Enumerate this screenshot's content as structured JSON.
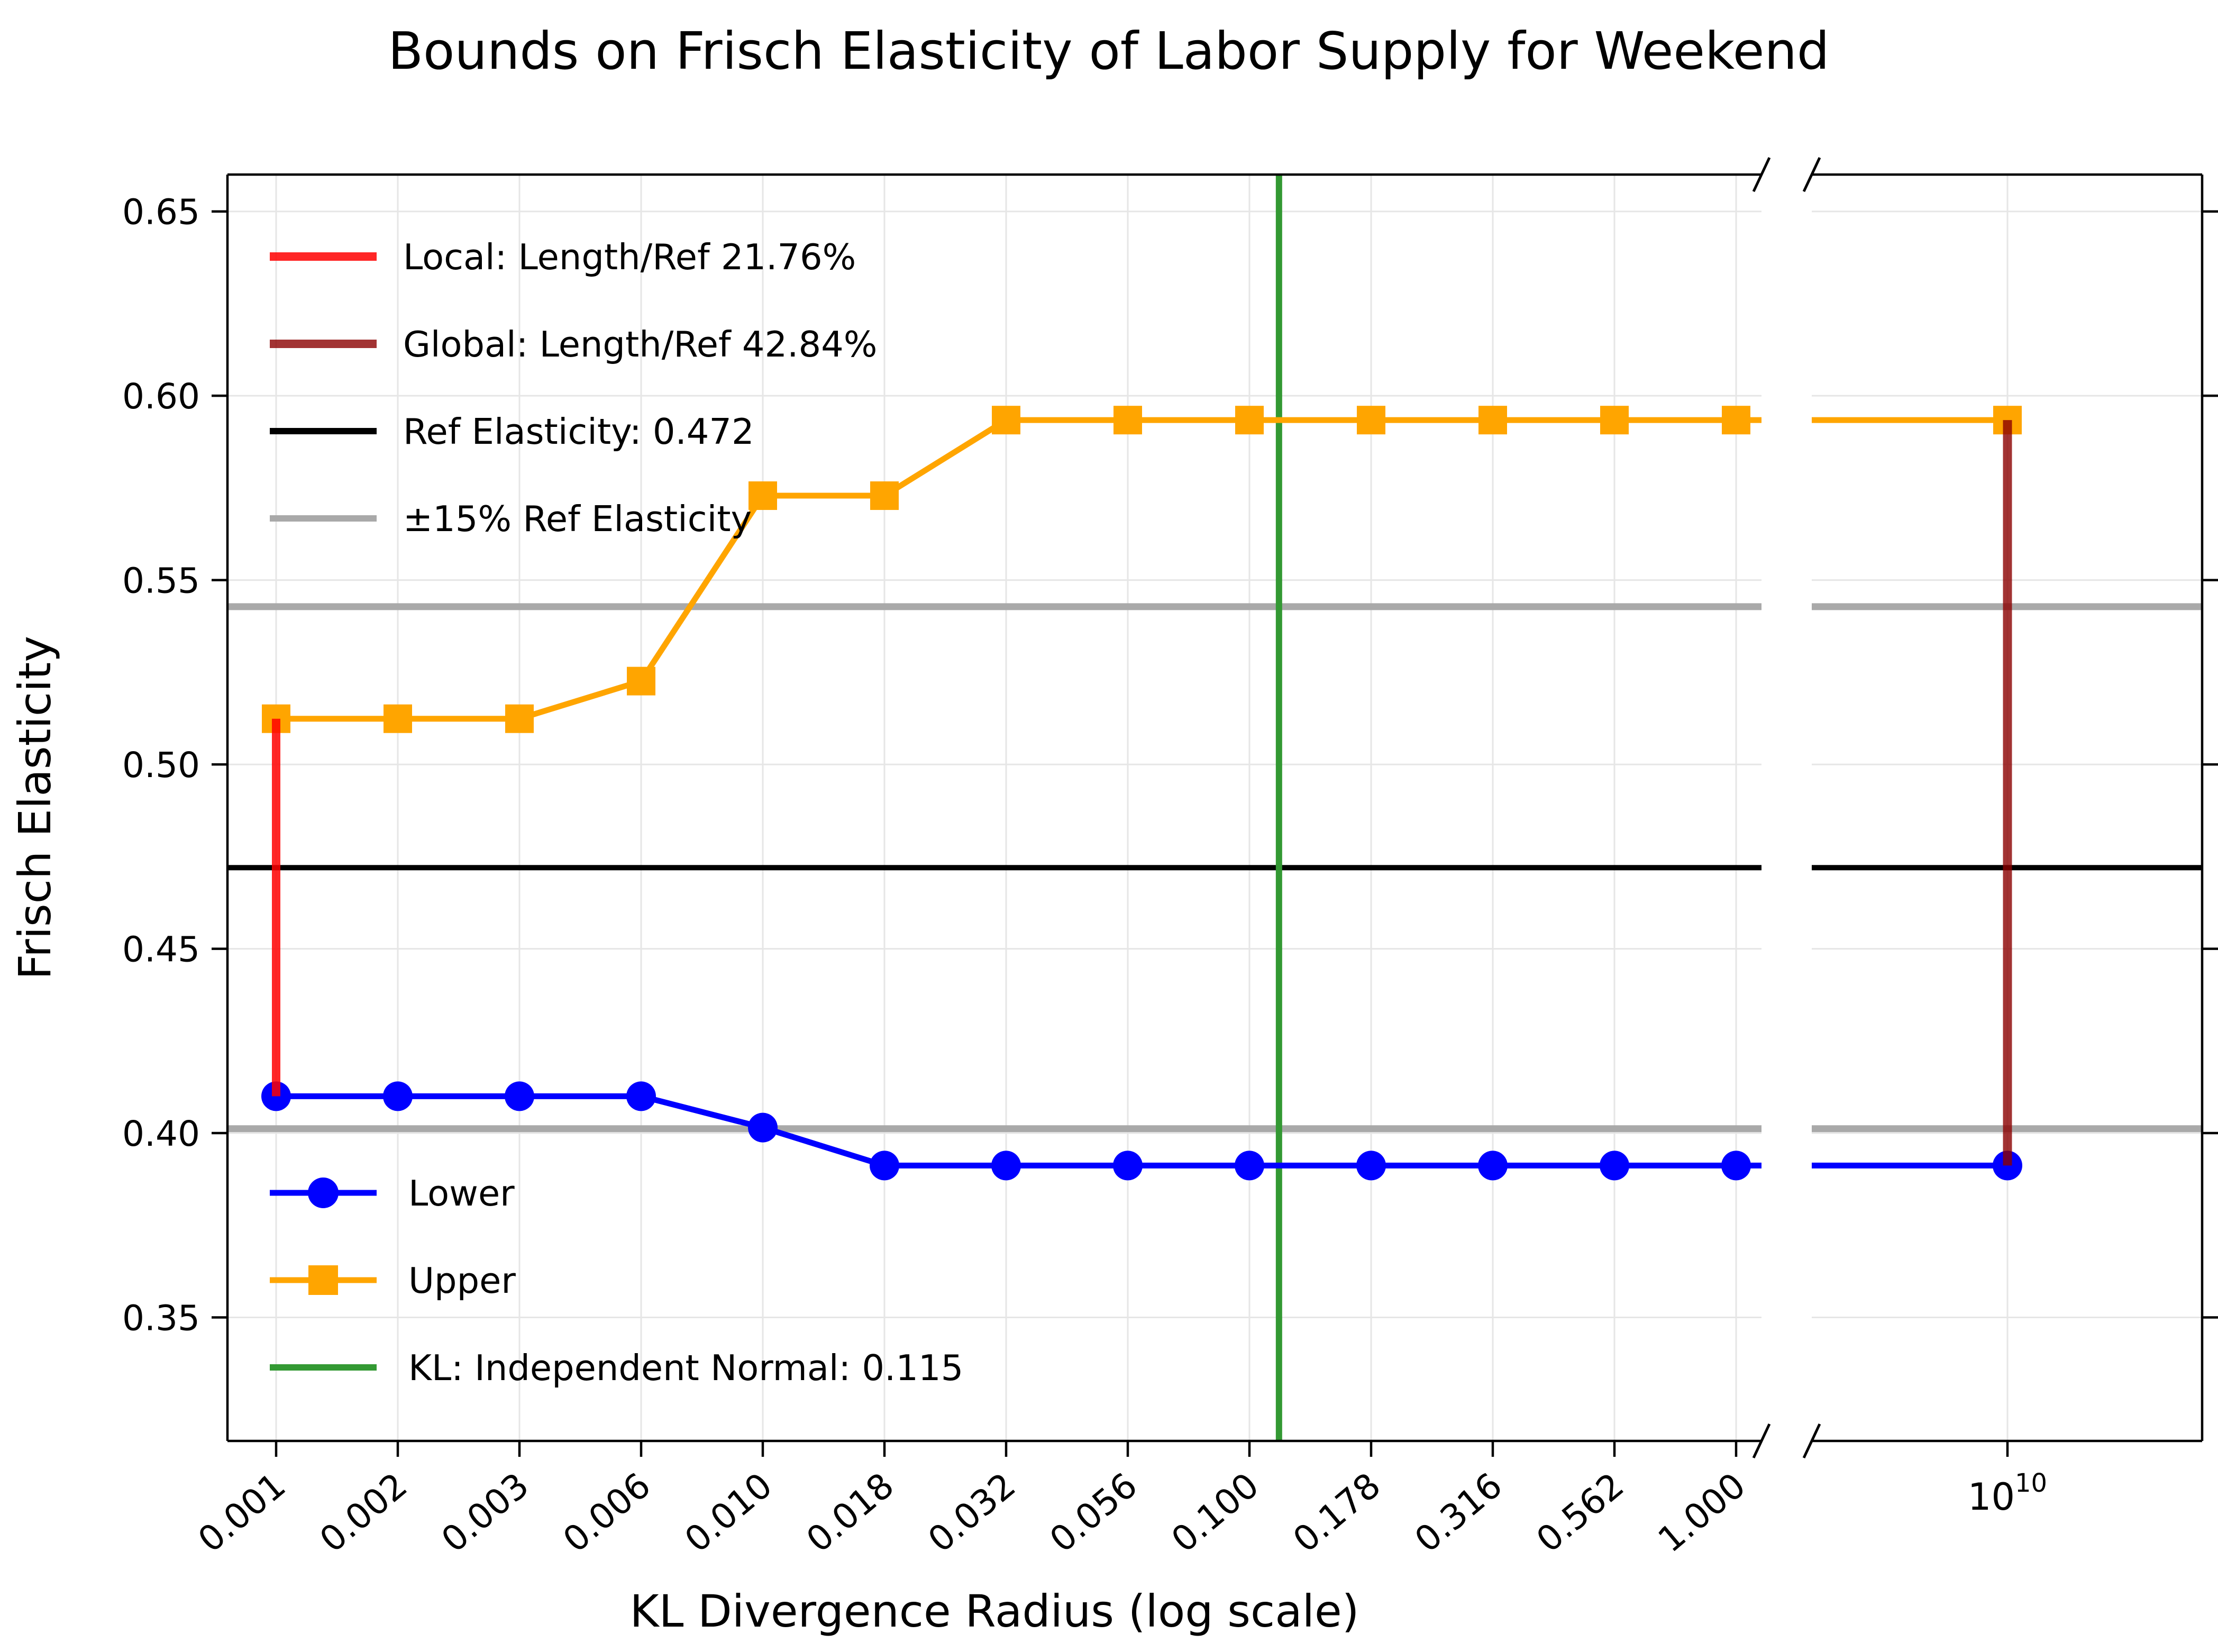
{
  "title": "Bounds on Frisch Elasticity of Labor Supply for Weekend",
  "x_axis": {
    "label": "KL Divergence Radius (log scale)",
    "tick_labels": [
      "0.001",
      "0.002",
      "0.003",
      "0.006",
      "0.010",
      "0.018",
      "0.032",
      "0.056",
      "0.100",
      "0.178",
      "0.316",
      "0.562",
      "1.000"
    ],
    "break_tick_label": {
      "base": "10",
      "exponent": "10"
    }
  },
  "y_axis": {
    "label": "Frisch Elasticity",
    "tick_labels": [
      "0.35",
      "0.40",
      "0.45",
      "0.50",
      "0.55",
      "0.60",
      "0.65"
    ]
  },
  "colors": {
    "blue": "#0000ff",
    "orange": "#ffa500",
    "green": "#339933",
    "red": "rgba(255,0,0,0.85)",
    "darkred": "rgba(139,0,0,0.8)",
    "black": "#000000",
    "gray": "#a9a9a9",
    "grid": "#e6e6e6"
  },
  "legend_ref": {
    "items": [
      {
        "id": "local",
        "label": "Local: Length/Ref 21.76%"
      },
      {
        "id": "global",
        "label": "Global: Length/Ref 42.84%"
      },
      {
        "id": "ref",
        "label": "Ref Elasticity: 0.472"
      },
      {
        "id": "band",
        "label": "±15% Ref Elasticity"
      }
    ]
  },
  "legend_series": {
    "items": [
      {
        "id": "lower",
        "label": "Lower"
      },
      {
        "id": "upper",
        "label": "Upper"
      },
      {
        "id": "kl",
        "label": "KL: Independent Normal: 0.115"
      }
    ]
  },
  "chart_data": {
    "type": "line",
    "x_log10": [
      -3,
      -2.75,
      -2.5,
      -2.25,
      -2,
      -1.75,
      -1.5,
      -1.25,
      -1,
      -0.75,
      -0.5,
      -0.25,
      0
    ],
    "x_values": [
      0.001,
      0.00178,
      0.00316,
      0.00562,
      0.01,
      0.0178,
      0.0316,
      0.0562,
      0.1,
      0.178,
      0.316,
      0.562,
      1.0
    ],
    "broken_x_value": 10000000000.0,
    "series": [
      {
        "name": "Lower",
        "marker": "circle",
        "values": [
          0.41,
          0.41,
          0.41,
          0.41,
          0.4015,
          0.3912,
          0.3912,
          0.3912,
          0.3912,
          0.3912,
          0.3912,
          0.3912,
          0.3912
        ],
        "broken_value": 0.3912
      },
      {
        "name": "Upper",
        "marker": "square",
        "values": [
          0.5124,
          0.5124,
          0.5124,
          0.5226,
          0.5729,
          0.5729,
          0.5934,
          0.5934,
          0.5934,
          0.5934,
          0.5934,
          0.5934,
          0.5934
        ],
        "broken_value": 0.5934
      }
    ],
    "ref_elasticity": 0.472,
    "ref_band_values": [
      0.4012,
      0.5428
    ],
    "ref_band_pct": 15,
    "kl_independent_normal": 0.115,
    "local_interval": {
      "x": 0.001,
      "lower": 0.41,
      "upper": 0.5124,
      "length_ref_pct": 21.76
    },
    "global_interval": {
      "x": 10000000000.0,
      "lower": 0.3912,
      "upper": 0.5934,
      "length_ref_pct": 42.84
    },
    "y_ticks": [
      0.35,
      0.4,
      0.45,
      0.5,
      0.55,
      0.6,
      0.65
    ],
    "ylim": [
      0.3165,
      0.66
    ],
    "xlim_log10": [
      -3.1,
      0.052
    ],
    "grid": true,
    "legend_ref_position": "upper-left",
    "legend_series_position": "lower-left"
  }
}
